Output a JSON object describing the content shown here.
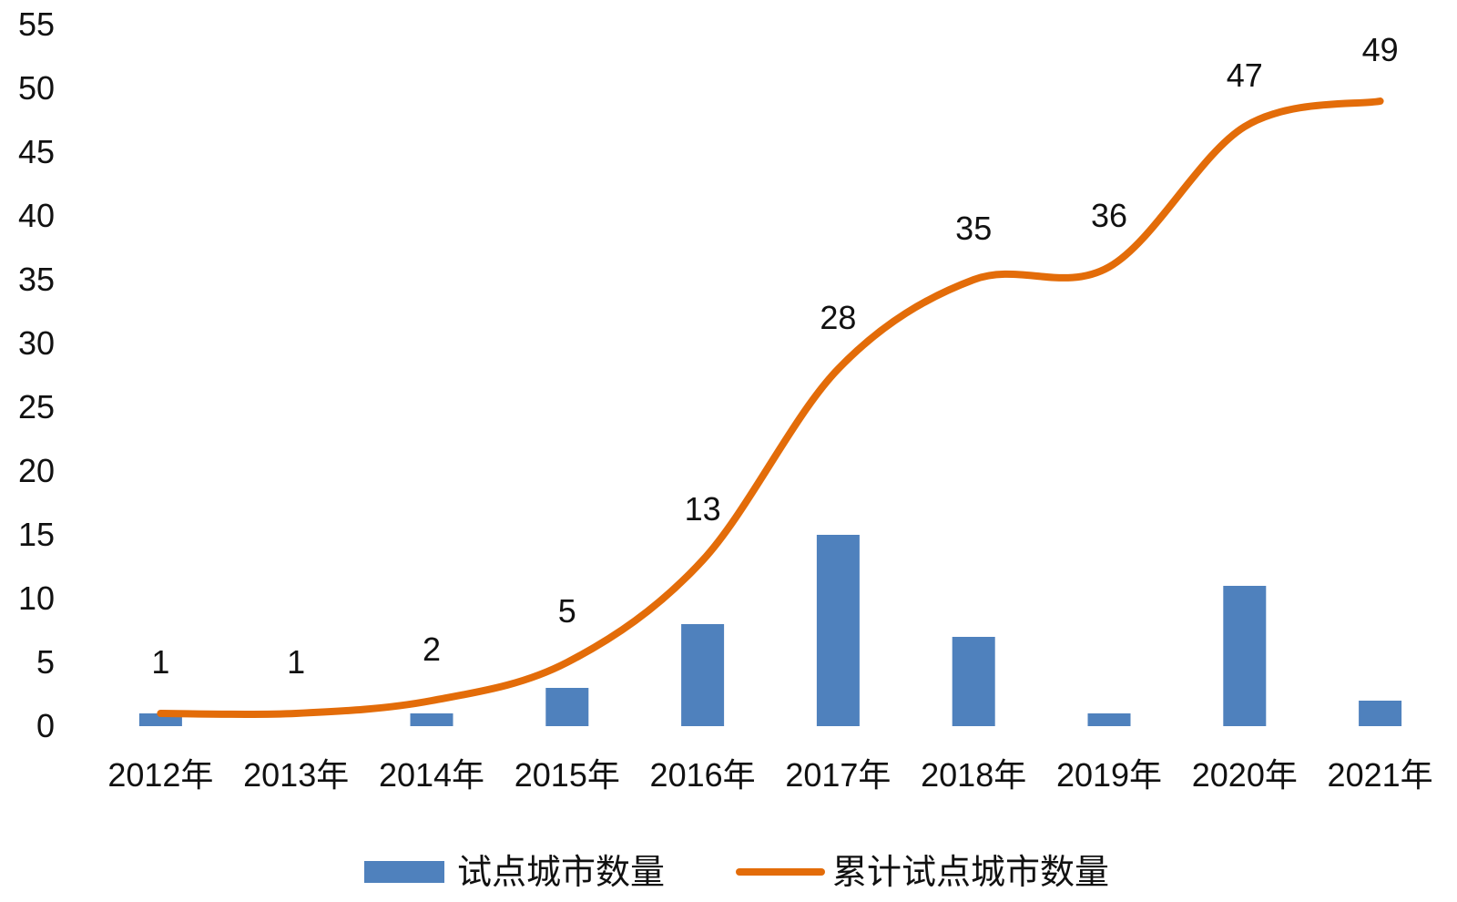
{
  "chart_data": {
    "type": "bar",
    "title": "",
    "xlabel": "",
    "ylabel": "",
    "ylim": [
      0,
      55
    ],
    "yticks": [
      0,
      5,
      10,
      15,
      20,
      25,
      30,
      35,
      40,
      45,
      50,
      55
    ],
    "categories": [
      "2012年",
      "2013年",
      "2014年",
      "2015年",
      "2016年",
      "2017年",
      "2018年",
      "2019年",
      "2020年",
      "2021年"
    ],
    "grid": false,
    "legend_position": "bottom",
    "series": [
      {
        "name": "试点城市数量",
        "type": "bar",
        "color": "#4F81BD",
        "values": [
          1,
          0,
          1,
          3,
          8,
          15,
          7,
          1,
          11,
          2
        ]
      },
      {
        "name": "累计试点城市数量",
        "type": "line",
        "smooth": true,
        "color": "#E36C09",
        "values": [
          1,
          1,
          2,
          5,
          13,
          28,
          35,
          36,
          47,
          49
        ],
        "data_labels": [
          "1",
          "1",
          "2",
          "5",
          "13",
          "28",
          "35",
          "36",
          "47",
          "49"
        ]
      }
    ]
  }
}
